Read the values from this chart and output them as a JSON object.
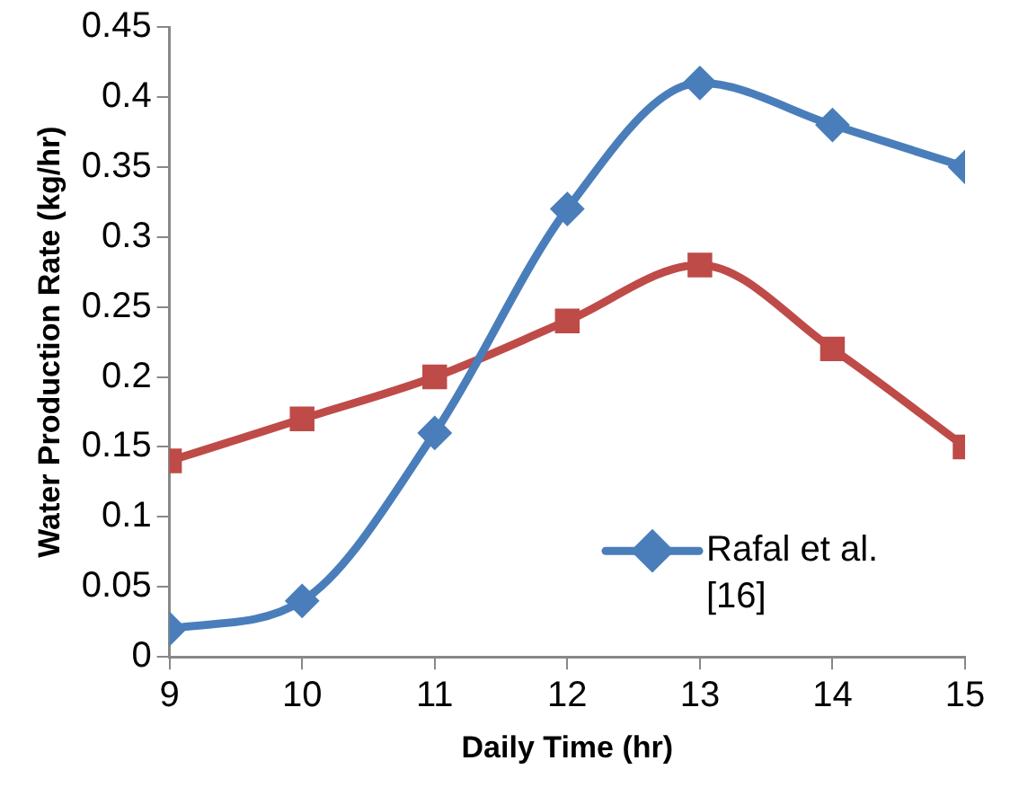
{
  "chart_data": {
    "type": "line",
    "xlabel": "Daily Time (hr)",
    "ylabel": "Water Production Rate (kg/hr)",
    "x": [
      9,
      10,
      11,
      12,
      13,
      14,
      15
    ],
    "xlim": [
      9,
      15
    ],
    "xticks": [
      9,
      10,
      11,
      12,
      13,
      14,
      15
    ],
    "ylim": [
      0,
      0.45
    ],
    "yticks": [
      0,
      0.05,
      0.1,
      0.15,
      0.2,
      0.25,
      0.3,
      0.35,
      0.4,
      0.45
    ],
    "grid": false,
    "legend": "bottom right",
    "series": [
      {
        "name": "Rafal et al. [16]",
        "color": "#4a7ebb",
        "marker": "diamond",
        "values": [
          0.02,
          0.04,
          0.16,
          0.32,
          0.41,
          0.38,
          0.35
        ]
      },
      {
        "color": "#be4b48",
        "marker": "square",
        "values": [
          0.14,
          0.17,
          0.2,
          0.24,
          0.28,
          0.22,
          0.15
        ]
      }
    ]
  }
}
